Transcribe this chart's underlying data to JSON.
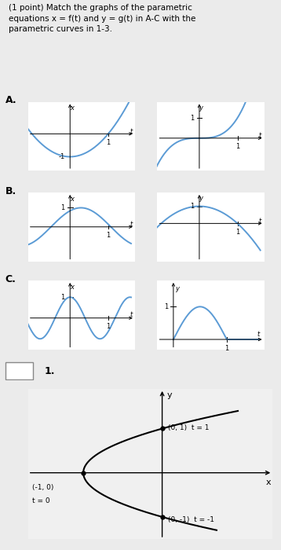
{
  "title_text": "(1 point) Match the graphs of the parametric\nequations x = f(t) and y = g(t) in A-C with the\nparametric curves in 1-3.",
  "bg_color": "#ebebeb",
  "panel_bg": "#ffffff",
  "curve_color": "#5b9bd5",
  "section_labels": [
    "A.",
    "B.",
    "C."
  ],
  "bottom_label": "1.",
  "tick_fontsize": 6,
  "axis_label_fontsize": 7
}
